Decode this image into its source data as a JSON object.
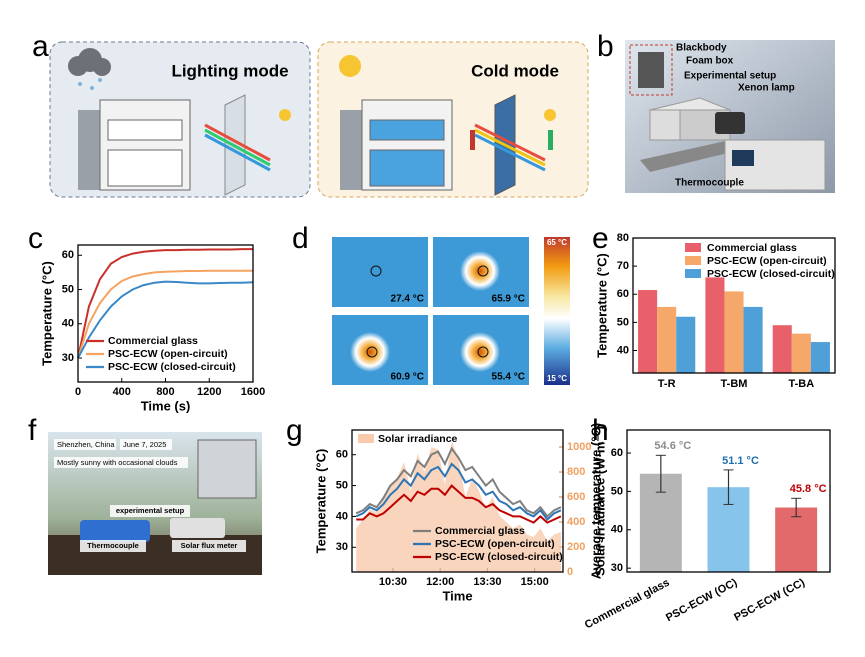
{
  "panel_labels": [
    "a",
    "b",
    "c",
    "d",
    "e",
    "f",
    "g",
    "h"
  ],
  "panel_a": {
    "left_title": "Lighting mode",
    "right_title": "Cold mode"
  },
  "panel_b": {
    "labels": [
      "Blackbody",
      "Foam box",
      "Experimental setup",
      "Xenon lamp",
      "Thermocouple"
    ]
  },
  "panel_d": {
    "readings": [
      "27.4 °C",
      "65.9 °C",
      "60.9 °C",
      "55.4 °C"
    ],
    "scale_max": "65 °C",
    "scale_min": "15 °C"
  },
  "panel_f": {
    "location": "Shenzhen, China",
    "date": "June 7, 2025",
    "weather": "Mostly sunny with occasional clouds",
    "labels": [
      "experimental setup",
      "Thermocouple",
      "Solar flux meter"
    ]
  },
  "chart_data": [
    {
      "type": "line",
      "x_label": "Time (s)",
      "y_label": "Temperature (°C)",
      "x": [
        0,
        100,
        200,
        300,
        400,
        500,
        600,
        700,
        800,
        900,
        1000,
        1100,
        1200,
        1300,
        1400,
        1500,
        1600
      ],
      "series": [
        {
          "name": "Commercial glass",
          "color": "#c9302c",
          "values": [
            30,
            45,
            53,
            57.5,
            59.5,
            60.5,
            61,
            61.3,
            61.5,
            61.5,
            61.6,
            61.6,
            61.7,
            61.7,
            61.7,
            61.8,
            61.8
          ]
        },
        {
          "name": "PSC-ECW (open-circuit)",
          "color": "#f4a460",
          "values": [
            30,
            40,
            46,
            50,
            52.5,
            53.8,
            54.5,
            55,
            55.2,
            55.3,
            55.4,
            55.4,
            55.5,
            55.5,
            55.5,
            55.5,
            55.5
          ]
        },
        {
          "name": "PSC-ECW (closed-circuit)",
          "color": "#3a88c8",
          "values": [
            30,
            36,
            41,
            45,
            48,
            50,
            51.3,
            52,
            52.3,
            52.2,
            52,
            51.8,
            51.8,
            51.9,
            52,
            52,
            52.1
          ]
        }
      ],
      "xlim": [
        0,
        1600
      ],
      "xticks": [
        0,
        400,
        800,
        1200,
        1600
      ],
      "ylim": [
        23,
        63
      ],
      "yticks": [
        30,
        40,
        50,
        60
      ],
      "legend": "lower left"
    },
    {
      "type": "bar",
      "y_label": "Temperature (°C)",
      "categories": [
        "T-R",
        "T-BM",
        "T-BA"
      ],
      "series": [
        {
          "name": "Commercial glass",
          "color": "#e8616a",
          "values": [
            61.5,
            66,
            49
          ]
        },
        {
          "name": "PSC-ECW (open-circuit)",
          "color": "#f5a86a",
          "values": [
            55.5,
            61,
            46
          ]
        },
        {
          "name": "PSC-ECW (closed-circuit)",
          "color": "#4f9fd8",
          "values": [
            52,
            55.5,
            43
          ]
        }
      ],
      "ylim": [
        32,
        80
      ],
      "yticks": [
        40,
        50,
        60,
        70,
        80
      ],
      "legend": "upper right"
    },
    {
      "type": "line",
      "x_label": "Time",
      "y_label": "Temperature (°C)",
      "y2_label": "Solar irradiance (W·m⁻²)",
      "x": [
        560,
        573,
        586,
        599,
        612,
        625,
        638,
        651,
        664,
        677,
        690,
        703,
        716,
        729,
        742,
        755,
        768,
        781,
        794,
        807,
        820,
        833,
        846,
        859,
        872,
        885,
        898,
        911,
        924,
        937,
        950
      ],
      "series": [
        {
          "name": "Solar irradiance",
          "color": "#f8cbad",
          "axis": "y2",
          "values": [
            350,
            420,
            500,
            480,
            600,
            700,
            750,
            880,
            650,
            950,
            800,
            1000,
            980,
            700,
            1050,
            900,
            600,
            750,
            650,
            500,
            600,
            450,
            400,
            350,
            380,
            300,
            280,
            350,
            250,
            300,
            320
          ]
        },
        {
          "name": "Commercial glass",
          "color": "#7f7f7f",
          "values": [
            41,
            42,
            44,
            43,
            46,
            50,
            52,
            55,
            53,
            58,
            56,
            60,
            61,
            57,
            62,
            59,
            55,
            56,
            53,
            50,
            52,
            48,
            46,
            44,
            45,
            42,
            41,
            43,
            40,
            42,
            43
          ]
        },
        {
          "name": "PSC-ECW (open-circuit)",
          "color": "#2e75b6",
          "values": [
            40,
            41,
            43,
            42,
            44,
            47,
            49,
            52,
            50,
            54,
            52,
            55,
            56,
            53,
            57,
            55,
            51,
            52,
            50,
            47,
            48,
            45,
            44,
            42,
            43,
            41,
            40,
            42,
            39,
            41,
            42
          ]
        },
        {
          "name": "PSC-ECW (closed-circuit)",
          "color": "#c00000",
          "values": [
            39,
            39,
            41,
            40,
            41,
            43,
            45,
            47,
            45,
            48,
            47,
            49,
            49,
            47,
            50,
            48,
            46,
            46,
            45,
            43,
            44,
            42,
            41,
            40,
            40,
            39,
            38,
            40,
            38,
            39,
            40
          ]
        }
      ],
      "xlim": [
        552,
        954
      ],
      "xticks": [
        {
          "value": 630,
          "label": "10:30"
        },
        {
          "value": 720,
          "label": "12:00"
        },
        {
          "value": 810,
          "label": "13:30"
        },
        {
          "value": 900,
          "label": "15:00"
        }
      ],
      "ylim": [
        22,
        68
      ],
      "yticks": [
        30,
        40,
        50,
        60
      ],
      "y2lim": [
        0,
        1136
      ],
      "y2ticks": [
        0,
        200,
        400,
        600,
        800,
        1000
      ],
      "legend": "lower right"
    },
    {
      "type": "bar",
      "y_label": "Average temperature (°C)",
      "categories": [
        "Commercial glass",
        "PSC-ECW (OC)",
        "PSC-ECW (CC)"
      ],
      "values": [
        54.6,
        51.1,
        45.8
      ],
      "value_labels": [
        "54.6 °C",
        "51.1 °C",
        "45.8 °C"
      ],
      "errors": [
        4.8,
        4.5,
        2.4
      ],
      "colors": [
        "#b5b5b5",
        "#86c4ec",
        "#e26a6a"
      ],
      "label_colors": [
        "#8c8c8c",
        "#1f6fb0",
        "#c00000"
      ],
      "ylim": [
        29,
        66
      ],
      "yticks": [
        30,
        40,
        50,
        60
      ]
    }
  ]
}
